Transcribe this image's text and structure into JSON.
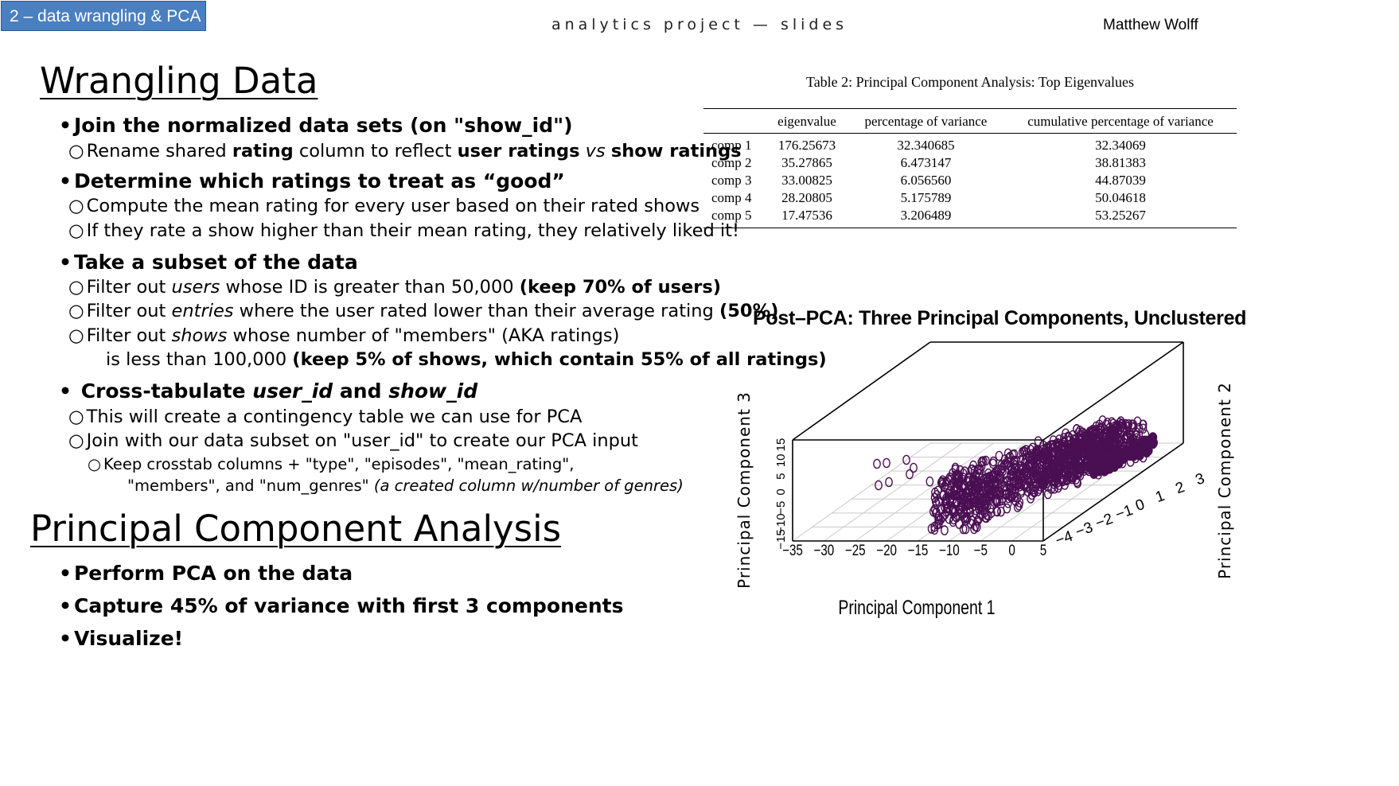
{
  "header": {
    "tag": "2 – data wrangling & PCA",
    "center": "analytics project — slides",
    "author": "Matthew Wolff"
  },
  "wrangling": {
    "title": "Wrangling Data",
    "b1_title": "Join the normalized data sets (on \"show_id\")",
    "b1_s1": [
      "Rename shared ",
      "rating",
      " column to reflect ",
      "user ratings",
      " vs ",
      "show ratings"
    ],
    "b2_title": "Determine which ratings to treat as “good”",
    "b2_s1": "Compute the mean rating for every user based on their rated shows",
    "b2_s2": "If they rate a show higher than their mean rating, they relatively liked it!",
    "b3_title": "Take a subset of the data",
    "b3_s1": [
      "Filter out ",
      "users",
      " whose ID is greater than 50,000 ",
      "(keep 70% of users)"
    ],
    "b3_s2": [
      "Filter out ",
      "entries",
      " where the user rated lower than their average rating ",
      "(50%)"
    ],
    "b3_s3": [
      "Filter out ",
      "shows",
      " whose number of \"members\" (AKA ratings)"
    ],
    "b3_s3b": [
      "is less than 100,000 ",
      "(keep 5% of shows, which contain 55% of all ratings)"
    ],
    "b4_title": [
      "Cross-tabulate ",
      "user_id",
      " and ",
      "show_id"
    ],
    "b4_s1": "This will create a contingency table we can use for PCA",
    "b4_s2": "Join with our data subset on \"user_id\" to create our PCA input",
    "b4_s3": "Keep crosstab columns + \"type\", \"episodes\", \"mean_rating\",",
    "b4_s3b": [
      "\"members\", and \"num_genres\" ",
      "(a created column w/number of genres)"
    ]
  },
  "pca": {
    "title": "Principal Component Analysis",
    "b1": "Perform PCA on the data",
    "b2": "Capture 45% of variance with first 3 components",
    "b3": "Visualize!"
  },
  "table": {
    "caption": "Table 2: Principal Component Analysis: Top Eigenvalues",
    "headers": [
      "",
      "eigenvalue",
      "percentage of variance",
      "cumulative percentage of variance"
    ],
    "rows": [
      [
        "comp 1",
        "176.25673",
        "32.340685",
        "32.34069"
      ],
      [
        "comp 2",
        "35.27865",
        "6.473147",
        "38.81383"
      ],
      [
        "comp 3",
        "33.00825",
        "6.056560",
        "44.87039"
      ],
      [
        "comp 4",
        "28.20805",
        "5.175789",
        "50.04618"
      ],
      [
        "comp 5",
        "17.47536",
        "3.206489",
        "53.25267"
      ]
    ]
  },
  "chart_data": {
    "type": "scatter",
    "title": "Post–PCA: Three Principal Components, Unclustered",
    "xlabel": "Principal Component 1",
    "ylabel": "Principal Component 2",
    "zlabel": "Principal Component 3",
    "x_ticks": [
      "−35",
      "−30",
      "−25",
      "−20",
      "−15",
      "−10",
      "−5",
      "0",
      "5"
    ],
    "y_ticks": [
      "−4",
      "−3",
      "−2",
      "−1",
      "0",
      "1",
      "2",
      "3"
    ],
    "z_ticks": [
      "−15",
      "−10",
      "−5",
      "0",
      "5",
      "10",
      "15"
    ],
    "xlim": [
      -35,
      5
    ],
    "ylim": [
      -4,
      3
    ],
    "zlim": [
      -15,
      15
    ],
    "marker_color": "#4a0e52",
    "points_note": "dense purple circle markers"
  }
}
